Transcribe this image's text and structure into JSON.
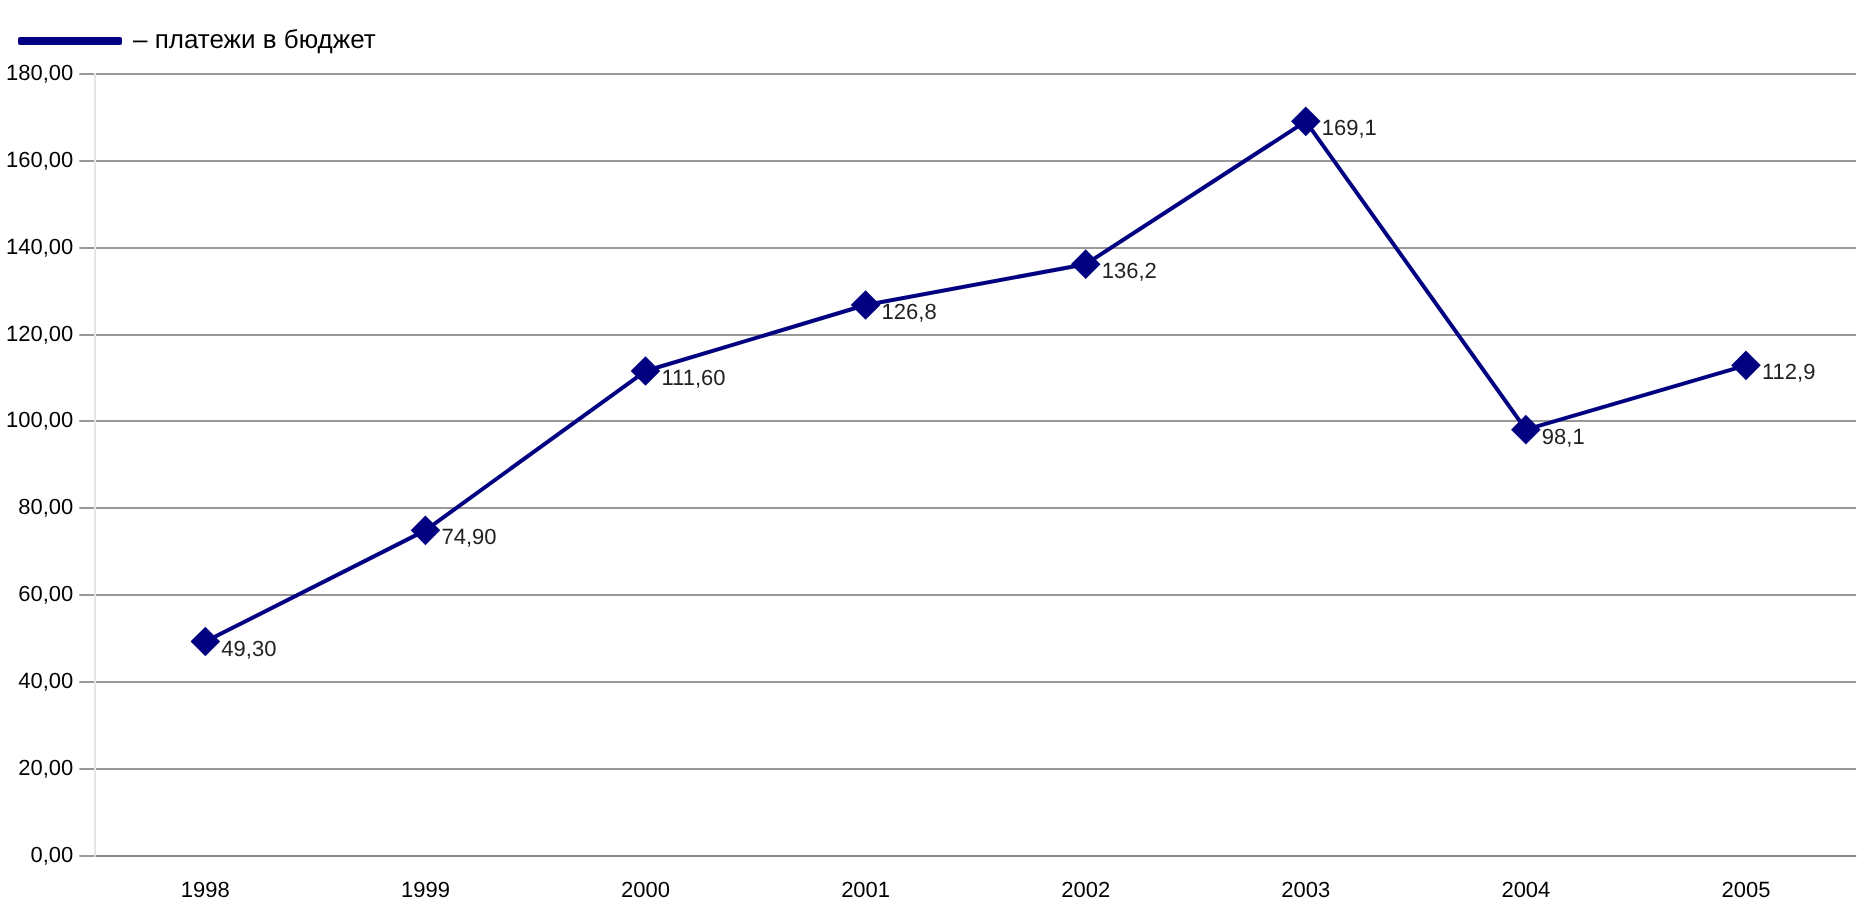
{
  "chart_data": {
    "type": "line",
    "categories": [
      "1998",
      "1999",
      "2000",
      "2001",
      "2002",
      "2003",
      "2004",
      "2005"
    ],
    "series": [
      {
        "name": "– платежи в бюджет",
        "color": "#000080",
        "values": [
          49.3,
          74.9,
          111.6,
          126.8,
          136.2,
          169.1,
          98.1,
          112.9
        ],
        "value_labels": [
          "49,30",
          "74,90",
          "111,60",
          "126,8",
          "136,2",
          "169,1",
          "98,1",
          "112,9"
        ]
      }
    ],
    "ylim": [
      0,
      180
    ],
    "yticks": [
      {
        "value": 0,
        "label": "0,00"
      },
      {
        "value": 20,
        "label": "20,00"
      },
      {
        "value": 40,
        "label": "40,00"
      },
      {
        "value": 60,
        "label": "60,00"
      },
      {
        "value": 80,
        "label": "80,00"
      },
      {
        "value": 100,
        "label": "100,00"
      },
      {
        "value": 120,
        "label": "120,00"
      },
      {
        "value": 140,
        "label": "140,00"
      },
      {
        "value": 160,
        "label": "160,00"
      },
      {
        "value": 180,
        "label": "180,00"
      }
    ],
    "grid": "y",
    "legend": "top left",
    "marker": "diamond",
    "line_style": "solid"
  }
}
